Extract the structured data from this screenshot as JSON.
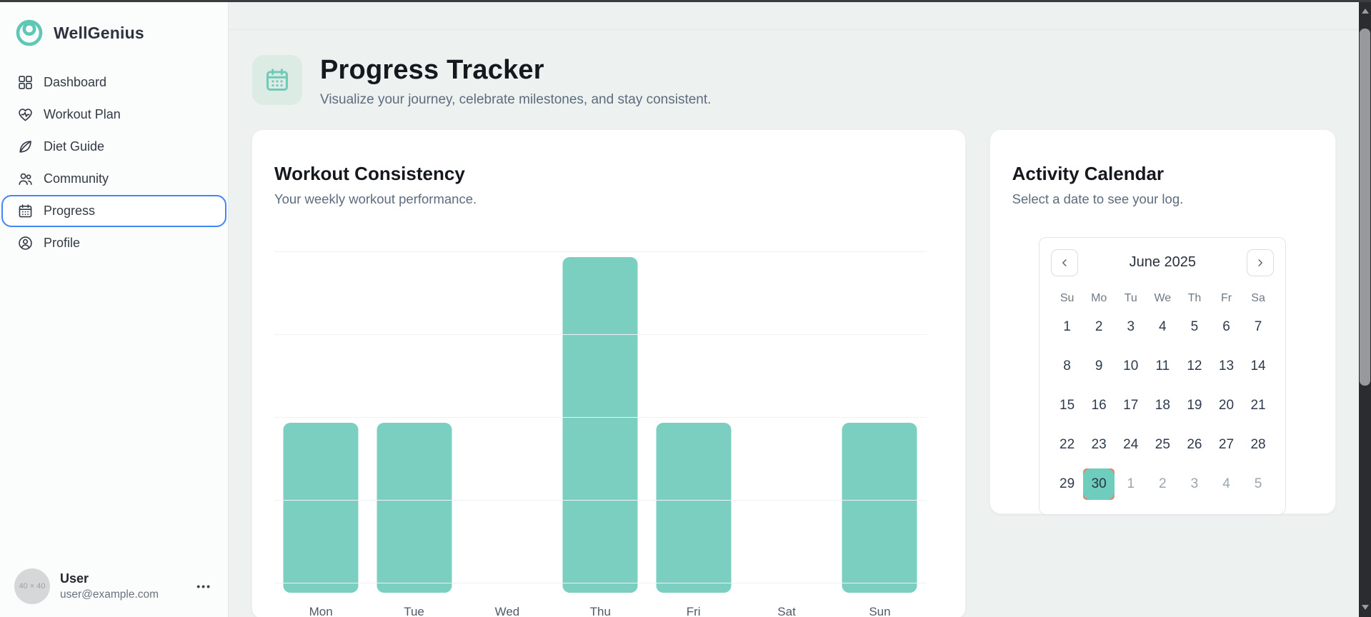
{
  "app": {
    "name": "WellGenius"
  },
  "sidebar": {
    "items": [
      {
        "label": "Dashboard",
        "icon": "grid-icon",
        "active": false
      },
      {
        "label": "Workout Plan",
        "icon": "heart-pulse-icon",
        "active": false
      },
      {
        "label": "Diet Guide",
        "icon": "leaf-icon",
        "active": false
      },
      {
        "label": "Community",
        "icon": "users-icon",
        "active": false
      },
      {
        "label": "Progress",
        "icon": "calendar-icon",
        "active": true
      },
      {
        "label": "Profile",
        "icon": "user-circle-icon",
        "active": false
      }
    ],
    "user": {
      "avatar_placeholder": "40 × 40",
      "name": "User",
      "email": "user@example.com",
      "menu_label": "•••"
    }
  },
  "header": {
    "icon": "calendar-icon",
    "title": "Progress Tracker",
    "subtitle": "Visualize your journey, celebrate milestones, and stay consistent."
  },
  "chart_card": {
    "title": "Workout Consistency",
    "subtitle": "Your weekly workout performance."
  },
  "chart_data": {
    "type": "bar",
    "title": "Workout Consistency",
    "categories": [
      "Mon",
      "Tue",
      "Wed",
      "Thu",
      "Fri",
      "Sat",
      "Sun"
    ],
    "values": [
      2,
      2,
      0,
      4,
      2,
      0,
      2
    ],
    "xlabel": "",
    "ylabel": "",
    "ylim": [
      0,
      4
    ],
    "grid": true,
    "gridline_count": 5,
    "bar_color": "#7bcfc1",
    "legend": "none",
    "y_tick_labels_visible": false
  },
  "calendar_card": {
    "title": "Activity Calendar",
    "subtitle": "Select a date to see your log.",
    "month_label": "June 2025",
    "prev_icon": "chevron-left-icon",
    "next_icon": "chevron-right-icon",
    "weekdays": [
      "Su",
      "Mo",
      "Tu",
      "We",
      "Th",
      "Fr",
      "Sa"
    ],
    "weeks": [
      [
        {
          "n": "1"
        },
        {
          "n": "2"
        },
        {
          "n": "3"
        },
        {
          "n": "4"
        },
        {
          "n": "5"
        },
        {
          "n": "6"
        },
        {
          "n": "7"
        }
      ],
      [
        {
          "n": "8"
        },
        {
          "n": "9"
        },
        {
          "n": "10"
        },
        {
          "n": "11"
        },
        {
          "n": "12"
        },
        {
          "n": "13"
        },
        {
          "n": "14"
        }
      ],
      [
        {
          "n": "15"
        },
        {
          "n": "16"
        },
        {
          "n": "17"
        },
        {
          "n": "18"
        },
        {
          "n": "19"
        },
        {
          "n": "20"
        },
        {
          "n": "21"
        }
      ],
      [
        {
          "n": "22"
        },
        {
          "n": "23"
        },
        {
          "n": "24"
        },
        {
          "n": "25"
        },
        {
          "n": "26"
        },
        {
          "n": "27"
        },
        {
          "n": "28"
        }
      ],
      [
        {
          "n": "29"
        },
        {
          "n": "30",
          "selected": true
        },
        {
          "n": "1",
          "muted": true
        },
        {
          "n": "2",
          "muted": true
        },
        {
          "n": "3",
          "muted": true
        },
        {
          "n": "4",
          "muted": true
        },
        {
          "n": "5",
          "muted": true
        }
      ]
    ],
    "selected_day": "30"
  },
  "colors": {
    "accent_teal": "#6fcdbd",
    "bar_teal": "#7bcfc1",
    "logo_teal": "#5ec8b4",
    "active_nav_border": "#4285f4",
    "selected_day_ring": "#ef8063",
    "background": "#edf1ef",
    "card": "#ffffff",
    "text_dark": "#15181d",
    "text_gray": "#5d6c7e",
    "muted_day": "#9aa5b1"
  }
}
